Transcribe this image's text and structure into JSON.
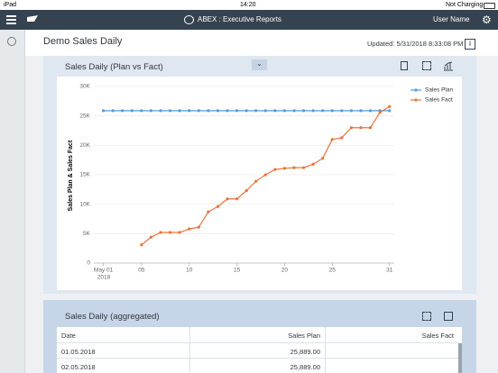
{
  "status_bar": {
    "device": "iPad",
    "time": "14:20",
    "battery": "Not Charging"
  },
  "header": {
    "title": "ABEX : Executive Reports",
    "user": "User Name"
  },
  "page": {
    "title": "Demo Sales Daily",
    "updated": "Updated: 5/31/2018 8:33:08 PM"
  },
  "chart_data": {
    "type": "line",
    "title": "Sales Daily (Plan vs Fact)",
    "y_label": "Sales Plan & Sales Fact",
    "x": [
      1,
      2,
      3,
      4,
      5,
      6,
      7,
      8,
      9,
      10,
      11,
      12,
      13,
      14,
      15,
      16,
      17,
      18,
      19,
      20,
      21,
      22,
      23,
      24,
      25,
      26,
      27,
      28,
      29,
      30,
      31
    ],
    "x_year": "2018",
    "xlim": [
      0,
      31.5
    ],
    "xticks": [
      {
        "value": 1,
        "label": "May 01"
      },
      {
        "value": 5,
        "label": "05"
      },
      10,
      15,
      20,
      25,
      31
    ],
    "ylim": [
      0,
      30000
    ],
    "yticks": [
      0,
      {
        "value": 5000,
        "label": "5K"
      },
      {
        "value": 10000,
        "label": "10K"
      },
      {
        "value": 15000,
        "label": "15K"
      },
      {
        "value": 20000,
        "label": "20K"
      },
      {
        "value": 25000,
        "label": "25K"
      },
      {
        "value": 30000,
        "label": "30K"
      }
    ],
    "grid": true,
    "legend": "top-right",
    "series": [
      {
        "name": "Sales Plan",
        "color": "#5899da",
        "values": [
          25889,
          25889,
          25889,
          25889,
          25889,
          25889,
          25889,
          25889,
          25889,
          25889,
          25889,
          25889,
          25889,
          25889,
          25889,
          25889,
          25889,
          25889,
          25889,
          25889,
          25889,
          25889,
          25889,
          25889,
          25889,
          25889,
          25889,
          25889,
          25889,
          25889,
          25889
        ]
      },
      {
        "name": "Sales Fact",
        "color": "#e8743b",
        "values": [
          null,
          null,
          null,
          null,
          3100,
          4400,
          5200,
          5200,
          5200,
          5800,
          6100,
          8700,
          9600,
          10900,
          10900,
          12300,
          13900,
          15000,
          15900,
          16100,
          16200,
          16200,
          16800,
          17800,
          21000,
          21300,
          23000,
          23000,
          23000,
          25600,
          26600
        ]
      }
    ]
  },
  "table": {
    "title": "Sales Daily (aggregated)",
    "columns": [
      "Date",
      "Sales Plan",
      "Sales Fact"
    ],
    "rows": [
      [
        "01.05.2018",
        "25,889.00"
      ],
      [
        "02.05.2018",
        "25,889.00"
      ]
    ]
  }
}
